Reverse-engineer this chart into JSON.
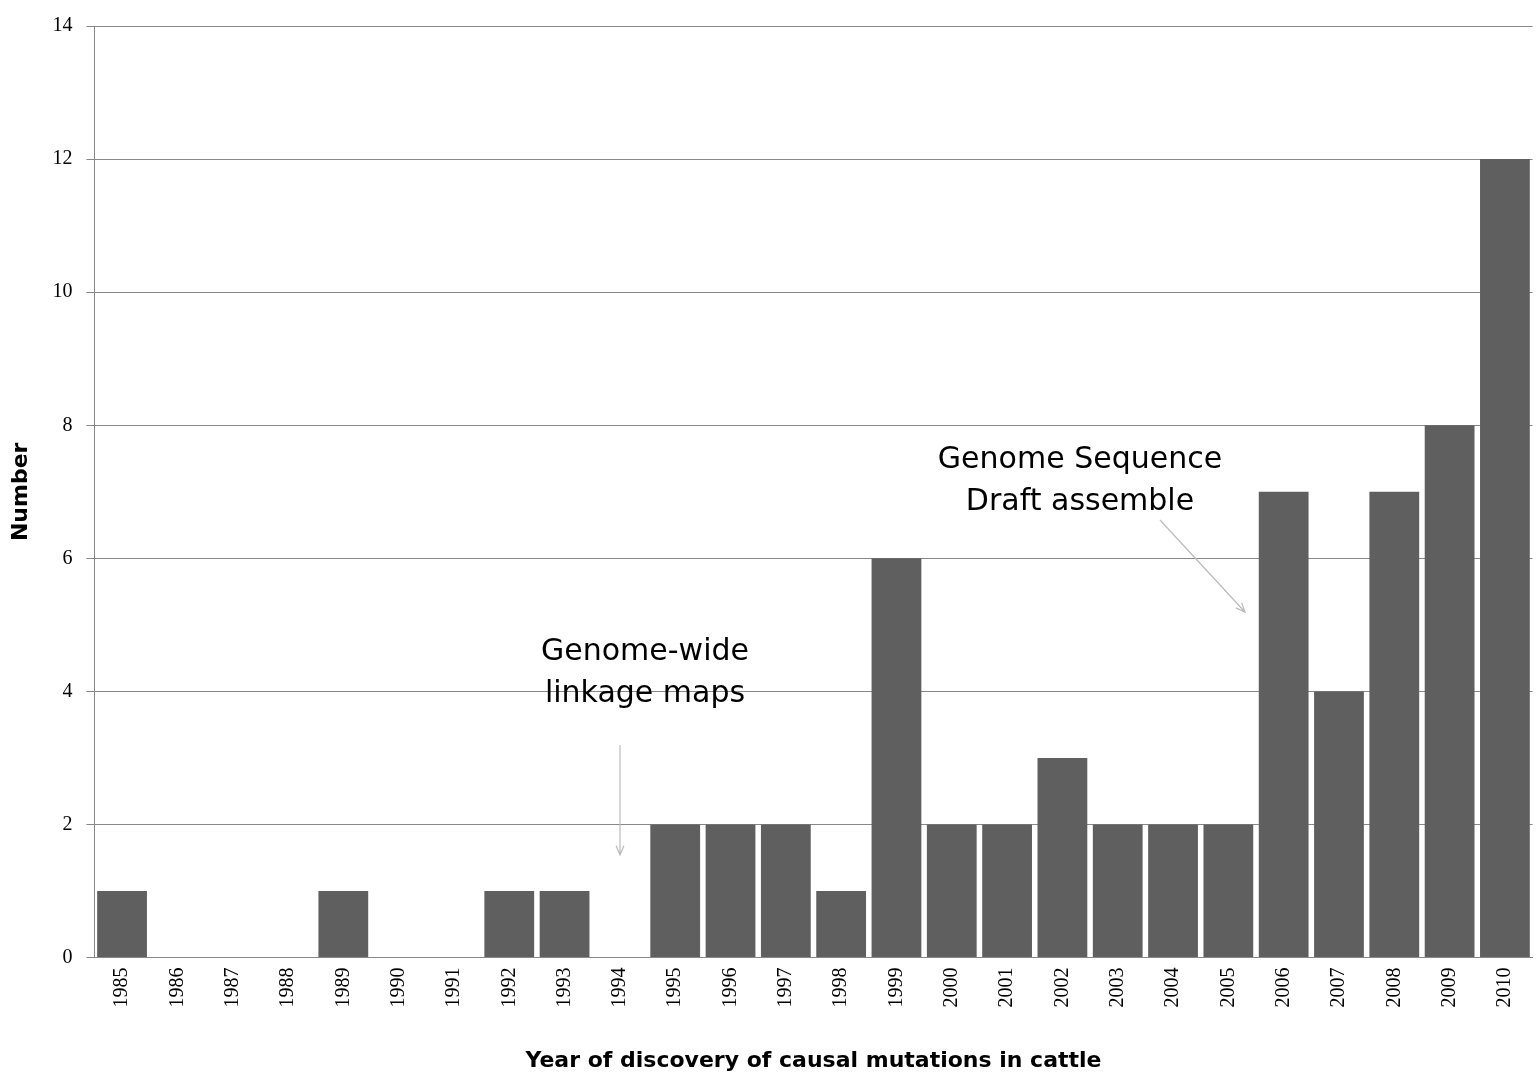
{
  "chart_data": {
    "type": "bar",
    "xlabel": "Year of discovery of causal mutations in cattle",
    "ylabel": "Number",
    "categories": [
      "1985",
      "1986",
      "1987",
      "1988",
      "1989",
      "1990",
      "1991",
      "1992",
      "1993",
      "1994",
      "1995",
      "1996",
      "1997",
      "1998",
      "1999",
      "2000",
      "2001",
      "2002",
      "2003",
      "2004",
      "2005",
      "2006",
      "2007",
      "2008",
      "2009",
      "2010"
    ],
    "values": [
      1,
      0,
      0,
      0,
      1,
      0,
      0,
      1,
      1,
      0,
      2,
      2,
      2,
      1,
      6,
      2,
      2,
      3,
      2,
      2,
      2,
      7,
      4,
      7,
      8,
      12
    ],
    "color": "#5f5f5f",
    "ylim": [
      0,
      14
    ],
    "yticks": [
      0,
      2,
      4,
      6,
      8,
      10,
      12,
      14
    ],
    "grid": "y",
    "annotations": [
      "Genome-wide\nlinkage maps",
      "Genome Sequence\nDraft assemble"
    ]
  }
}
